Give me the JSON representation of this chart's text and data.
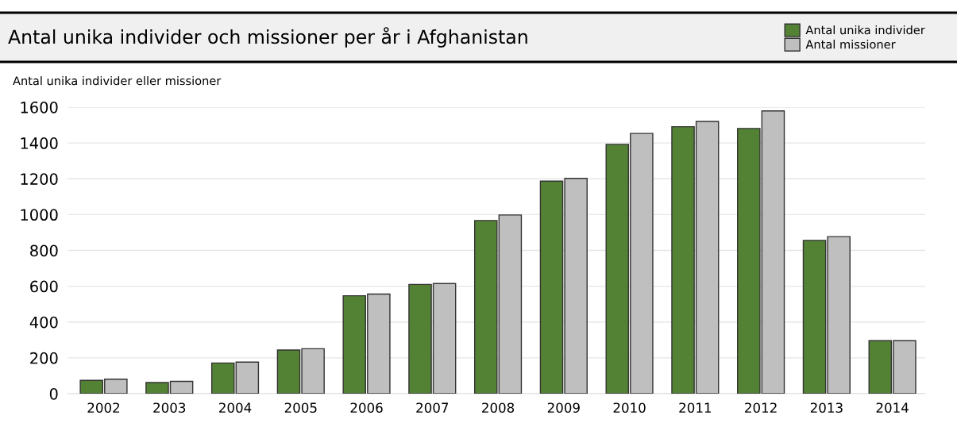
{
  "chart_data": {
    "type": "bar",
    "title": "Antal unika individer och missioner per år i Afghanistan",
    "ylabel": "Antal unika individer eller missioner",
    "categories": [
      "2002",
      "2003",
      "2004",
      "2005",
      "2006",
      "2007",
      "2008",
      "2009",
      "2010",
      "2011",
      "2012",
      "2013",
      "2014"
    ],
    "series": [
      {
        "name": "Antal unika individer",
        "color": "#548235",
        "values": [
          74,
          62,
          171,
          244,
          547,
          610,
          967,
          1187,
          1392,
          1491,
          1481,
          856,
          296
        ]
      },
      {
        "name": "Antal missioner",
        "color": "#bfbfbf",
        "values": [
          81,
          69,
          176,
          251,
          556,
          615,
          998,
          1202,
          1453,
          1520,
          1579,
          877,
          296
        ]
      }
    ],
    "ylim": [
      0,
      1600
    ],
    "yticks": [
      0,
      200,
      400,
      600,
      800,
      1000,
      1200,
      1400,
      1600
    ],
    "grid": "y",
    "legend": "top right"
  }
}
